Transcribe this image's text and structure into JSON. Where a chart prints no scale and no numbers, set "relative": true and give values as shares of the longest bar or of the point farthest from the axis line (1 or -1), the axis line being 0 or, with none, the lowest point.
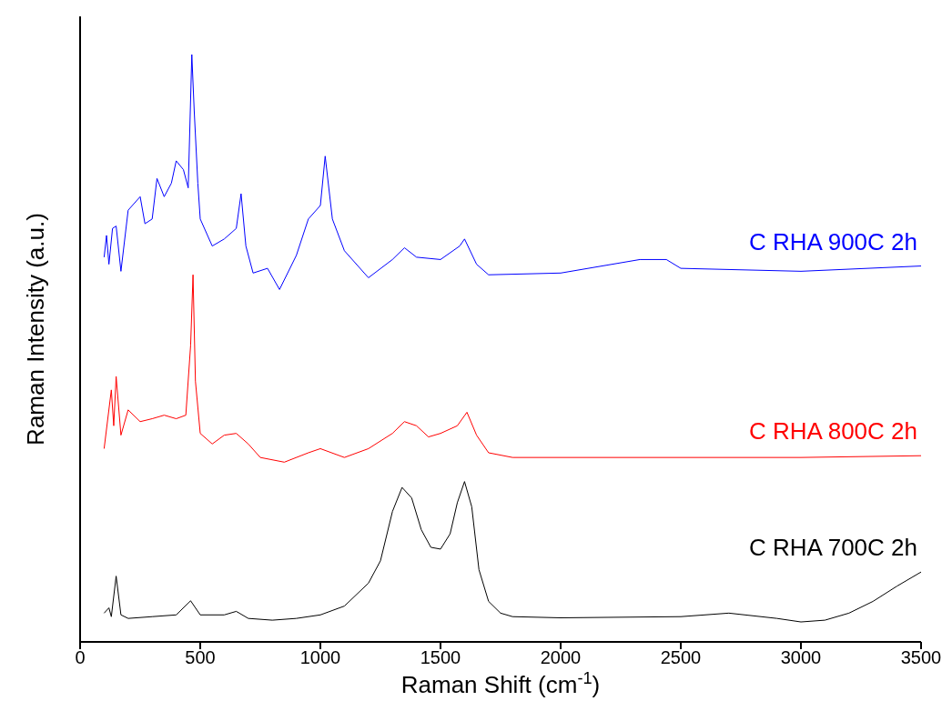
{
  "chart_data": {
    "type": "line",
    "relative": true,
    "xlabel": "Raman Shift (cm$^{-1}$)",
    "ylabel": "Raman Intensity (a.u.)",
    "xlim": [
      0,
      3500
    ],
    "xticks": [
      0,
      500,
      1000,
      1500,
      2000,
      2500,
      3000,
      3500
    ],
    "tick_labels": "x",
    "legend": false,
    "series": [
      {
        "name": "C RHA 900C 2h",
        "color": "#0000ff",
        "x": [
          100,
          110,
          120,
          135,
          150,
          170,
          200,
          250,
          270,
          300,
          320,
          350,
          380,
          400,
          430,
          450,
          465,
          475,
          490,
          500,
          550,
          600,
          650,
          670,
          690,
          720,
          780,
          830,
          900,
          950,
          1000,
          1020,
          1050,
          1100,
          1200,
          1300,
          1350,
          1400,
          1500,
          1580,
          1600,
          1650,
          1700,
          2000,
          2330,
          2440,
          2500,
          3000,
          3500
        ],
        "values": [
          0.655,
          0.692,
          0.643,
          0.704,
          0.708,
          0.631,
          0.735,
          0.758,
          0.712,
          0.72,
          0.789,
          0.758,
          0.781,
          0.819,
          0.804,
          0.773,
          1,
          0.904,
          0.781,
          0.72,
          0.674,
          0.686,
          0.704,
          0.763,
          0.674,
          0.628,
          0.636,
          0.6,
          0.658,
          0.72,
          0.743,
          0.827,
          0.72,
          0.666,
          0.62,
          0.651,
          0.671,
          0.655,
          0.651,
          0.674,
          0.686,
          0.643,
          0.625,
          0.628,
          0.651,
          0.651,
          0.636,
          0.631,
          0.64
        ]
      },
      {
        "name": "C RHA 800C 2h",
        "color": "#ff0000",
        "x": [
          100,
          130,
          140,
          150,
          170,
          200,
          250,
          300,
          350,
          400,
          440,
          460,
          470,
          480,
          500,
          550,
          600,
          650,
          700,
          750,
          850,
          950,
          1000,
          1100,
          1200,
          1300,
          1350,
          1400,
          1450,
          1500,
          1570,
          1610,
          1650,
          1700,
          1800,
          2000,
          2500,
          3000,
          3500
        ],
        "values": [
          0.329,
          0.429,
          0.368,
          0.452,
          0.352,
          0.395,
          0.375,
          0.38,
          0.386,
          0.38,
          0.386,
          0.505,
          0.625,
          0.444,
          0.355,
          0.337,
          0.352,
          0.355,
          0.337,
          0.314,
          0.306,
          0.322,
          0.329,
          0.314,
          0.329,
          0.355,
          0.375,
          0.368,
          0.349,
          0.355,
          0.368,
          0.391,
          0.352,
          0.322,
          0.314,
          0.314,
          0.314,
          0.314,
          0.317
        ]
      },
      {
        "name": "C RHA 700C 2h",
        "color": "#000000",
        "x": [
          100,
          120,
          130,
          150,
          170,
          200,
          300,
          400,
          460,
          500,
          600,
          650,
          700,
          800,
          900,
          1000,
          1100,
          1200,
          1250,
          1300,
          1340,
          1380,
          1420,
          1460,
          1500,
          1540,
          1570,
          1600,
          1630,
          1660,
          1700,
          1750,
          1800,
          2000,
          2500,
          2700,
          2900,
          3000,
          3100,
          3200,
          3300,
          3400,
          3500
        ],
        "values": [
          0.049,
          0.058,
          0.043,
          0.112,
          0.046,
          0.04,
          0.043,
          0.046,
          0.07,
          0.046,
          0.046,
          0.052,
          0.04,
          0.037,
          0.04,
          0.046,
          0.061,
          0.1,
          0.138,
          0.222,
          0.263,
          0.245,
          0.191,
          0.161,
          0.158,
          0.184,
          0.237,
          0.273,
          0.23,
          0.123,
          0.069,
          0.049,
          0.043,
          0.041,
          0.043,
          0.049,
          0.04,
          0.034,
          0.037,
          0.049,
          0.069,
          0.095,
          0.119
        ]
      }
    ]
  }
}
